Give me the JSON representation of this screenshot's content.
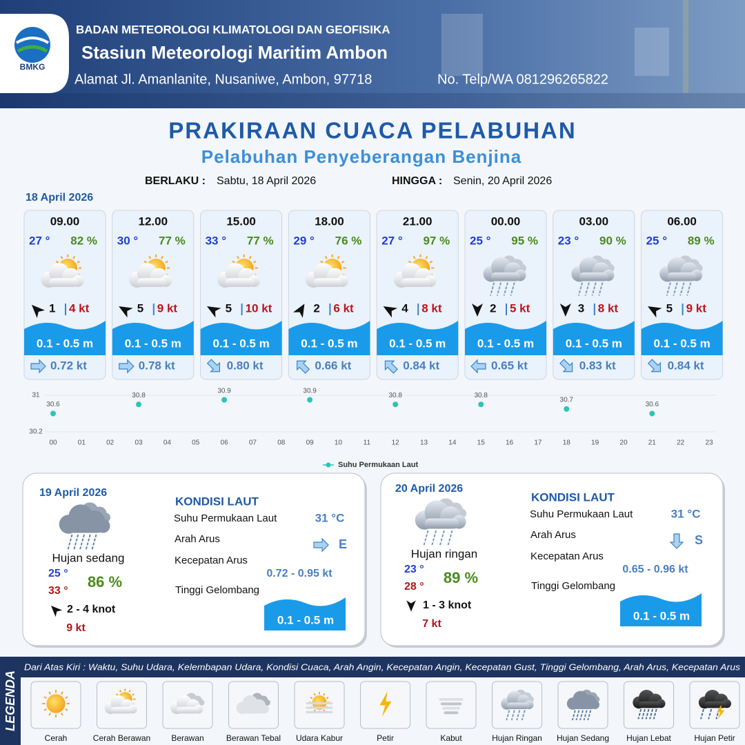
{
  "header": {
    "logo_text": "BMKG",
    "organization": "BADAN METEOROLOGI KLIMATOLOGI DAN GEOFISIKA",
    "station": "Stasiun Meteorologi Maritim Ambon",
    "address": "Alamat Jl. Amanlanite, Nusaniwe, Ambon, 97718",
    "phone": "No. Telp/WA  081296265822"
  },
  "title": "PRAKIRAAN CUACA PELABUHAN",
  "subtitle": "Pelabuhan Penyeberangan Benjina",
  "validity": {
    "from_label": "BERLAKU :",
    "from": "Sabtu, 18 April 2026",
    "to_label": "HINGGA :",
    "to": "Senin, 20 April 2026"
  },
  "day1_date": "18 April 2026",
  "forecasts": [
    {
      "time": "09.00",
      "temp": "27 °",
      "humidity": "82 %",
      "wind_speed": "1",
      "gust": "4 kt",
      "wave": "0.1 - 0.5 m",
      "current": "0.72 kt"
    },
    {
      "time": "12.00",
      "temp": "30 °",
      "humidity": "77 %",
      "wind_speed": "5",
      "gust": "9 kt",
      "wave": "0.1 - 0.5 m",
      "current": "0.78 kt"
    },
    {
      "time": "15.00",
      "temp": "33 °",
      "humidity": "77 %",
      "wind_speed": "5",
      "gust": "10 kt",
      "wave": "0.1 - 0.5 m",
      "current": "0.80 kt"
    },
    {
      "time": "18.00",
      "temp": "29 °",
      "humidity": "76 %",
      "wind_speed": "2",
      "gust": "6 kt",
      "wave": "0.1 - 0.5 m",
      "current": "0.66 kt"
    },
    {
      "time": "21.00",
      "temp": "27 °",
      "humidity": "97 %",
      "wind_speed": "4",
      "gust": "8 kt",
      "wave": "0.1 - 0.5 m",
      "current": "0.84 kt"
    },
    {
      "time": "00.00",
      "temp": "25 °",
      "humidity": "95 %",
      "wind_speed": "2",
      "gust": "5 kt",
      "wave": "0.1 - 0.5 m",
      "current": "0.65 kt"
    },
    {
      "time": "03.00",
      "temp": "23 °",
      "humidity": "90 %",
      "wind_speed": "3",
      "gust": "8 kt",
      "wave": "0.1 - 0.5 m",
      "current": "0.83 kt"
    },
    {
      "time": "06.00",
      "temp": "25 °",
      "humidity": "89 %",
      "wind_speed": "5",
      "gust": "9 kt",
      "wave": "0.1 - 0.5 m",
      "current": "0.84 kt"
    }
  ],
  "chart_data": {
    "type": "scatter",
    "categories": [
      "00",
      "01",
      "02",
      "03",
      "04",
      "05",
      "06",
      "07",
      "08",
      "09",
      "10",
      "11",
      "12",
      "13",
      "14",
      "15",
      "16",
      "17",
      "18",
      "19",
      "20",
      "21",
      "22",
      "23"
    ],
    "series": [
      {
        "name": "Suhu Permukaan Laut",
        "color": "#2ec4b6",
        "values": [
          30.6,
          null,
          null,
          30.8,
          null,
          null,
          30.9,
          null,
          null,
          30.9,
          null,
          null,
          30.8,
          null,
          null,
          30.8,
          null,
          null,
          30.7,
          null,
          null,
          30.6,
          null,
          null
        ]
      }
    ],
    "ylim": [
      30.2,
      31
    ],
    "yticks": [
      30.2,
      31
    ],
    "grid": true
  },
  "day_panels": [
    {
      "date": "19 April 2026",
      "condition": "Hujan sedang",
      "temp_min": "25 °",
      "temp_max": "33 °",
      "humidity": "86 %",
      "wind": "2  - 4 knot",
      "gust": "9 kt",
      "sea_title": "KONDISI LAUT",
      "sst_label": "Suhu Permukaan Laut",
      "sst": "31 °C",
      "current_dir_label": "Arah Arus",
      "current_dir": "E",
      "current_speed_label": "Kecepatan Arus",
      "current_speed": "0.72 - 0.95 kt",
      "wave_label": "Tinggi Gelombang",
      "wave": "0.1 - 0.5 m"
    },
    {
      "date": "20 April 2026",
      "condition": "Hujan ringan",
      "temp_min": "23 °",
      "temp_max": "28 °",
      "humidity": "89 %",
      "wind": "1  - 3 knot",
      "gust": "7 kt",
      "sea_title": "KONDISI LAUT",
      "sst_label": "Suhu Permukaan Laut",
      "sst": "31 °C",
      "current_dir_label": "Arah Arus",
      "current_dir": "S",
      "current_speed_label": "Kecepatan Arus",
      "current_speed": "0.65 - 0.96 kt",
      "wave_label": "Tinggi Gelombang",
      "wave": "0.1 - 0.5 m"
    }
  ],
  "legend": {
    "title": "LEGENDA",
    "description": "Dari Atas Kiri : Waktu, Suhu Udara, Kelembapan Udara, Kondisi Cuaca, Arah Angin, Kecepatan Angin, Kecepatan Gust, Tinggi Gelombang, Arah Arus, Kecepatan Arus",
    "items": [
      "Cerah",
      "Cerah Berawan",
      "Berawan",
      "Berawan Tebal",
      "Udara Kabur",
      "Petir",
      "Kabut",
      "Hujan Ringan",
      "Hujan Sedang",
      "Hujan Lebat",
      "Hujan Petir"
    ]
  }
}
